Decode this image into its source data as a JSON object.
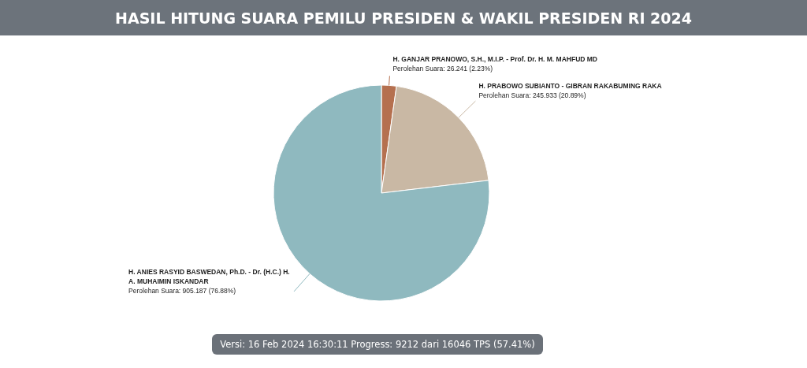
{
  "chart_data": {
    "type": "pie",
    "title": "HASIL HITUNG SUARA PEMILU PRESIDEN & WAKIL PRESIDEN RI 2024",
    "categories": [
      "H. GANJAR PRANOWO, S.H., M.I.P. - Prof. Dr. H. M. MAHFUD MD",
      "H. PRABOWO SUBIANTO - GIBRAN RAKABUMING RAKA",
      "H. ANIES RASYID BASWEDAN, Ph.D. - Dr. (H.C.) H. A. MUHAIMIN ISKANDAR"
    ],
    "values": [
      2.23,
      20.89,
      76.88
    ],
    "value_labels": [
      "Perolehan Suara: 26.241 (2.23%)",
      "Perolehan Suara: 245.933 (20.89%)",
      "Perolehan Suara: 905.187 (76.88%)"
    ],
    "colors": [
      "#b5704f",
      "#c9b8a4",
      "#8fb9bf"
    ],
    "legend": false,
    "annotations": [
      "Versi: 16 Feb 2024 16:30:11 Progress: 9212 dari 16046 TPS (57.41%)"
    ]
  }
}
